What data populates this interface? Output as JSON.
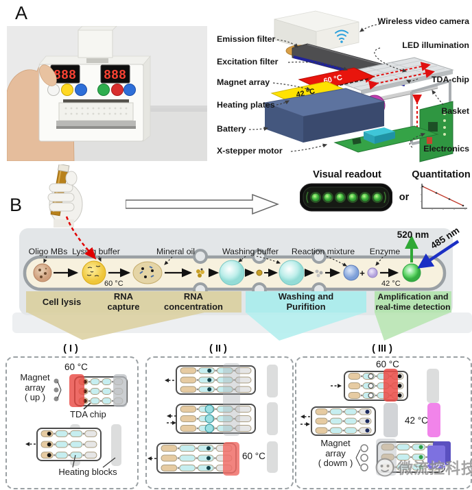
{
  "panel_a": {
    "label": "A"
  },
  "panel_b": {
    "label": "B"
  },
  "exploded": {
    "left_labels": {
      "emission": "Emission filter",
      "excitation": "Excitation filter",
      "magnet": "Magnet array",
      "heating": "Heating plates",
      "battery": "Battery",
      "stepper": "X-stepper motor"
    },
    "right_labels": {
      "camera": "Wireless video camera",
      "led": "LED illumination",
      "chip": "TDA-chip",
      "basket": "Basket",
      "electronics": "Electronics"
    },
    "plate_hot": "60 °C",
    "plate_warm": "42 °C"
  },
  "readout": {
    "visual_label": "Visual readout",
    "or_label": "or",
    "quant_label": "Quantitation"
  },
  "workflow": {
    "labels": {
      "oligo": "Oligo MBs",
      "lysing": "Lysing buffer",
      "mineral": "Mineral oil",
      "washing": "Washing buffer",
      "reaction": "Reaction mixture",
      "enzyme": "Enzyme"
    },
    "temp_lysis": "60 °C",
    "temp_amp": "42 °C",
    "plus": "+",
    "emission_nm": "520 nm",
    "excitation_nm": "485 nm",
    "stages": {
      "s1": "Cell lysis",
      "s2a": "RNA",
      "s2b": "capture",
      "s3a": "RNA",
      "s3b": "concentration",
      "s4a": "Washing and",
      "s4b": "Purifition",
      "s5a": "Amplification and",
      "s5b": "real-time detection"
    }
  },
  "panels": {
    "titles": {
      "p1": "( I )",
      "p2": "( II )",
      "p3": "( III )"
    },
    "p1": {
      "temp": "60 °C",
      "magnet1": "Magnet",
      "magnet2": "array",
      "magnet3": "( up )",
      "chip_label": "TDA chip",
      "heating_label": "Heating blocks"
    },
    "p2": {
      "temp": "60 °C"
    },
    "p3": {
      "temp_hot": "60 °C",
      "temp_warm": "42 °C",
      "magnet1": "Magnet",
      "magnet2": "array",
      "magnet3": "( dowm )"
    }
  },
  "watermark": {
    "text": "微流控科技"
  },
  "colors": {
    "hot_red": "#e8423c",
    "warm_magenta": "#ee72e2",
    "plate_yellow": "#ffe200",
    "signal_green": "#2fa835",
    "signal_blue": "#1b2fc4",
    "dash_red": "#e00000"
  }
}
